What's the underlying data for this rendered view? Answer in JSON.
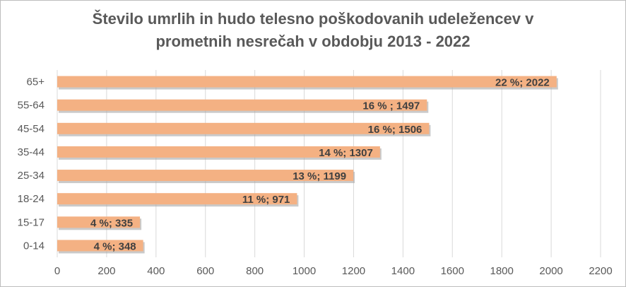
{
  "chart_data": {
    "type": "bar",
    "orientation": "horizontal",
    "title_lines": [
      "Število umrlih in hudo telesno poškodovanih udeležencev v",
      "prometnih nesrečah v obdobju 2013 - 2022"
    ],
    "categories": [
      "65+",
      "55-64",
      "45-54",
      "35-44",
      "25-34",
      "18-24",
      "15-17",
      "0-14"
    ],
    "values": [
      2022,
      1497,
      1506,
      1307,
      1199,
      971,
      335,
      348
    ],
    "data_labels": [
      "22 %; 2022",
      "16 % ; 1497",
      "16 %; 1506",
      "14 %; 1307",
      "13 %; 1199",
      "11 %; 971",
      "4 %; 335",
      "4 %; 348"
    ],
    "xlim": [
      0,
      2200
    ],
    "x_ticks": [
      0,
      200,
      400,
      600,
      800,
      1000,
      1200,
      1400,
      1600,
      1800,
      2000,
      2200
    ],
    "grid": true,
    "bar_color": "#F4B183",
    "bar_shadow_color": "#a6a6a6",
    "grid_color": "#d9d9d9",
    "text_color": "#595959"
  }
}
